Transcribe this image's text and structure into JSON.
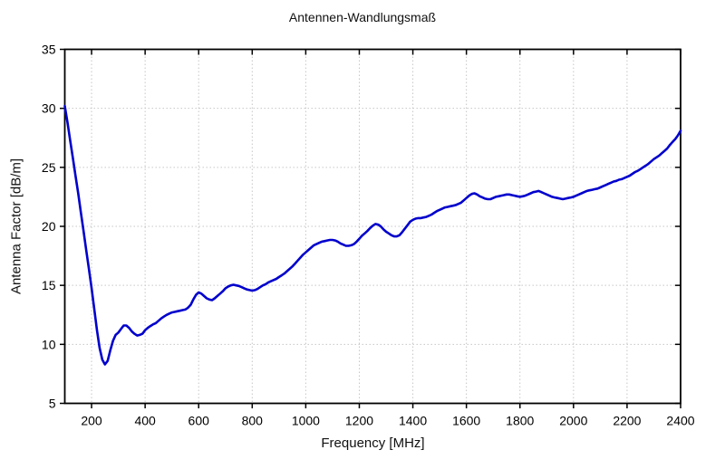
{
  "chart_data": {
    "type": "line",
    "title": "Antennen-Wandlungsmaß",
    "xlabel": "Frequency [MHz]",
    "ylabel": "Antenna Factor [dB/m]",
    "xlim": [
      100,
      2400
    ],
    "ylim": [
      5,
      35
    ],
    "x_ticks": [
      200,
      400,
      600,
      800,
      1000,
      1200,
      1400,
      1600,
      1800,
      2000,
      2200,
      2400
    ],
    "y_ticks": [
      5,
      10,
      15,
      20,
      25,
      30,
      35
    ],
    "grid": true,
    "grid_style": "dotted",
    "legend": false,
    "line_color": "#0000cd",
    "grid_color": "#c6c6c6",
    "axis_color": "#000000",
    "series": [
      {
        "name": "antenna-factor",
        "x": [
          100,
          110,
          120,
          130,
          140,
          150,
          160,
          170,
          180,
          190,
          200,
          210,
          220,
          230,
          240,
          250,
          260,
          270,
          280,
          290,
          300,
          310,
          320,
          330,
          340,
          350,
          360,
          370,
          380,
          390,
          400,
          410,
          420,
          430,
          440,
          450,
          460,
          470,
          480,
          490,
          500,
          510,
          520,
          530,
          540,
          550,
          560,
          570,
          580,
          590,
          600,
          610,
          620,
          630,
          640,
          650,
          660,
          670,
          680,
          690,
          700,
          710,
          720,
          730,
          740,
          750,
          760,
          770,
          780,
          790,
          800,
          810,
          820,
          830,
          840,
          850,
          860,
          870,
          880,
          890,
          900,
          910,
          920,
          930,
          940,
          950,
          960,
          970,
          980,
          990,
          1000,
          1010,
          1020,
          1030,
          1040,
          1050,
          1060,
          1070,
          1080,
          1090,
          1100,
          1110,
          1120,
          1130,
          1140,
          1150,
          1160,
          1170,
          1180,
          1190,
          1200,
          1210,
          1220,
          1230,
          1240,
          1250,
          1260,
          1270,
          1280,
          1290,
          1300,
          1310,
          1320,
          1330,
          1340,
          1350,
          1360,
          1370,
          1380,
          1390,
          1400,
          1410,
          1420,
          1430,
          1440,
          1450,
          1460,
          1470,
          1480,
          1490,
          1500,
          1510,
          1520,
          1530,
          1540,
          1550,
          1560,
          1570,
          1580,
          1590,
          1600,
          1610,
          1620,
          1630,
          1640,
          1650,
          1660,
          1670,
          1680,
          1690,
          1700,
          1710,
          1720,
          1730,
          1740,
          1750,
          1760,
          1770,
          1780,
          1790,
          1800,
          1810,
          1820,
          1830,
          1840,
          1850,
          1860,
          1870,
          1880,
          1890,
          1900,
          1910,
          1920,
          1930,
          1940,
          1950,
          1960,
          1970,
          1980,
          1990,
          2000,
          2010,
          2020,
          2030,
          2040,
          2050,
          2060,
          2070,
          2080,
          2090,
          2100,
          2110,
          2120,
          2130,
          2140,
          2150,
          2160,
          2170,
          2180,
          2190,
          2200,
          2210,
          2220,
          2230,
          2240,
          2250,
          2260,
          2270,
          2280,
          2290,
          2300,
          2310,
          2320,
          2330,
          2340,
          2350,
          2360,
          2370,
          2380,
          2390,
          2400
        ],
        "y": [
          30.2,
          28.8,
          27.3,
          25.8,
          24.3,
          22.8,
          21.2,
          19.6,
          18.0,
          16.4,
          14.8,
          13.0,
          11.2,
          9.7,
          8.7,
          8.3,
          8.6,
          9.5,
          10.3,
          10.8,
          11.0,
          11.3,
          11.6,
          11.6,
          11.4,
          11.1,
          10.9,
          10.75,
          10.8,
          10.9,
          11.2,
          11.4,
          11.55,
          11.7,
          11.8,
          12.0,
          12.2,
          12.35,
          12.5,
          12.6,
          12.7,
          12.75,
          12.8,
          12.85,
          12.9,
          12.95,
          13.1,
          13.35,
          13.8,
          14.2,
          14.4,
          14.3,
          14.1,
          13.9,
          13.8,
          13.75,
          13.9,
          14.1,
          14.3,
          14.5,
          14.75,
          14.9,
          15.0,
          15.05,
          15.0,
          14.95,
          14.85,
          14.75,
          14.65,
          14.6,
          14.55,
          14.6,
          14.7,
          14.85,
          15.0,
          15.1,
          15.25,
          15.35,
          15.45,
          15.55,
          15.7,
          15.85,
          16.0,
          16.2,
          16.4,
          16.6,
          16.85,
          17.1,
          17.35,
          17.6,
          17.8,
          18.0,
          18.2,
          18.4,
          18.5,
          18.6,
          18.7,
          18.75,
          18.8,
          18.85,
          18.85,
          18.8,
          18.7,
          18.55,
          18.45,
          18.35,
          18.35,
          18.4,
          18.5,
          18.7,
          18.95,
          19.2,
          19.4,
          19.6,
          19.85,
          20.05,
          20.2,
          20.15,
          20.0,
          19.75,
          19.55,
          19.4,
          19.25,
          19.15,
          19.15,
          19.25,
          19.5,
          19.8,
          20.1,
          20.4,
          20.55,
          20.65,
          20.7,
          20.7,
          20.75,
          20.8,
          20.9,
          21.0,
          21.15,
          21.3,
          21.4,
          21.5,
          21.6,
          21.65,
          21.7,
          21.75,
          21.8,
          21.9,
          22.0,
          22.2,
          22.4,
          22.6,
          22.75,
          22.8,
          22.7,
          22.55,
          22.45,
          22.35,
          22.3,
          22.3,
          22.4,
          22.5,
          22.55,
          22.6,
          22.65,
          22.7,
          22.7,
          22.65,
          22.6,
          22.55,
          22.5,
          22.55,
          22.6,
          22.7,
          22.8,
          22.9,
          22.95,
          23.0,
          22.9,
          22.8,
          22.7,
          22.6,
          22.5,
          22.45,
          22.4,
          22.35,
          22.3,
          22.35,
          22.4,
          22.45,
          22.5,
          22.6,
          22.7,
          22.8,
          22.9,
          23.0,
          23.05,
          23.1,
          23.15,
          23.2,
          23.3,
          23.4,
          23.5,
          23.6,
          23.7,
          23.8,
          23.85,
          23.95,
          24.0,
          24.1,
          24.2,
          24.3,
          24.45,
          24.6,
          24.7,
          24.85,
          25.0,
          25.15,
          25.3,
          25.5,
          25.7,
          25.85,
          26.0,
          26.2,
          26.4,
          26.6,
          26.9,
          27.15,
          27.4,
          27.7,
          28.1
        ]
      }
    ]
  }
}
